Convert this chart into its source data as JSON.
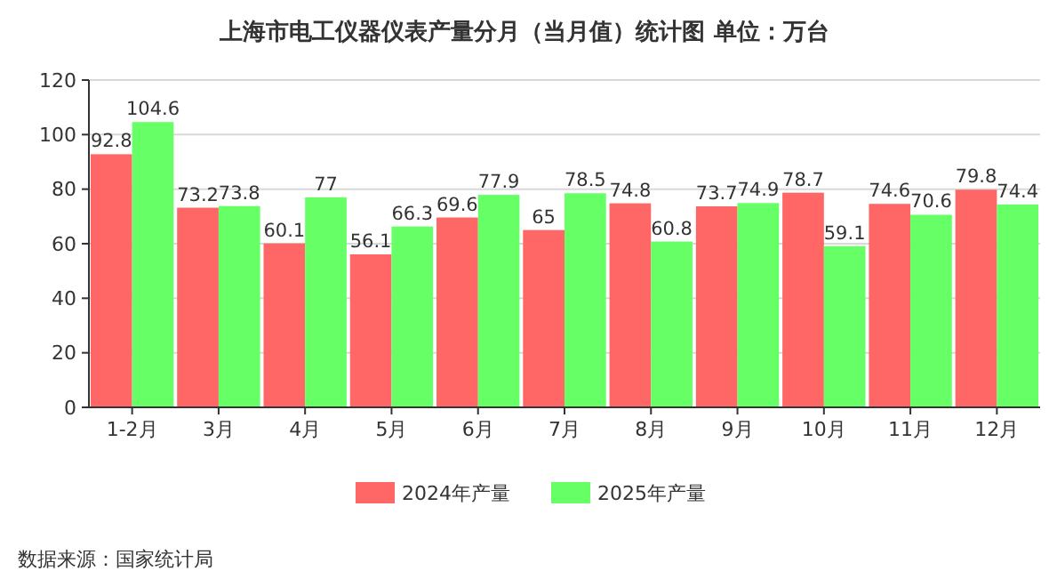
{
  "chart_data": {
    "type": "bar",
    "title": "上海市电工仪器仪表产量分月（当月值）统计图 单位：万台",
    "categories": [
      "1-2月",
      "3月",
      "4月",
      "5月",
      "6月",
      "7月",
      "8月",
      "9月",
      "10月",
      "11月",
      "12月"
    ],
    "series": [
      {
        "name": "2024年产量",
        "color": "#ff6666",
        "values": [
          92.8,
          73.2,
          60.1,
          56.1,
          69.6,
          65,
          74.8,
          73.7,
          78.7,
          74.6,
          79.8
        ]
      },
      {
        "name": "2025年产量",
        "color": "#66ff66",
        "values": [
          104.6,
          73.8,
          77,
          66.3,
          77.9,
          78.5,
          60.8,
          74.9,
          59.1,
          70.6,
          74.4
        ]
      }
    ],
    "ylim": [
      0,
      120
    ],
    "yticks": [
      0,
      20,
      40,
      60,
      80,
      100,
      120
    ],
    "grid": "y",
    "legend": "bottom",
    "data_labels": true,
    "annotations": [
      "数据来源：国家统计局"
    ]
  }
}
